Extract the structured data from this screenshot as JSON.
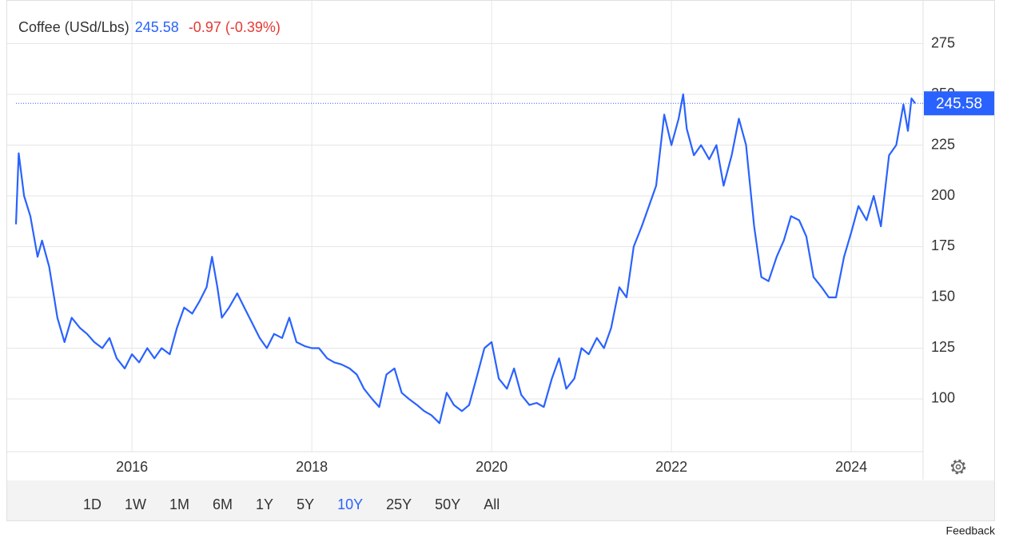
{
  "chart_data": {
    "type": "line",
    "title": "Coffee (USd/Lbs)",
    "last_value": 245.58,
    "change_label": "-0.97 (-0.39%)",
    "x": [
      2014.71,
      2014.74,
      2014.8,
      2014.87,
      2014.95,
      2015.0,
      2015.08,
      2015.17,
      2015.25,
      2015.33,
      2015.42,
      2015.5,
      2015.58,
      2015.67,
      2015.75,
      2015.83,
      2015.92,
      2016.0,
      2016.08,
      2016.17,
      2016.25,
      2016.33,
      2016.42,
      2016.5,
      2016.58,
      2016.67,
      2016.75,
      2016.83,
      2016.89,
      2016.95,
      2017.0,
      2017.08,
      2017.17,
      2017.25,
      2017.33,
      2017.42,
      2017.5,
      2017.58,
      2017.67,
      2017.75,
      2017.83,
      2017.92,
      2018.0,
      2018.08,
      2018.17,
      2018.25,
      2018.33,
      2018.42,
      2018.5,
      2018.58,
      2018.67,
      2018.75,
      2018.83,
      2018.92,
      2019.0,
      2019.08,
      2019.17,
      2019.25,
      2019.33,
      2019.42,
      2019.5,
      2019.58,
      2019.67,
      2019.75,
      2019.83,
      2019.92,
      2020.0,
      2020.08,
      2020.17,
      2020.25,
      2020.33,
      2020.42,
      2020.5,
      2020.58,
      2020.67,
      2020.75,
      2020.83,
      2020.92,
      2021.0,
      2021.08,
      2021.17,
      2021.25,
      2021.33,
      2021.42,
      2021.5,
      2021.58,
      2021.67,
      2021.75,
      2021.83,
      2021.92,
      2022.0,
      2022.08,
      2022.13,
      2022.17,
      2022.25,
      2022.33,
      2022.42,
      2022.5,
      2022.58,
      2022.67,
      2022.75,
      2022.83,
      2022.92,
      2023.0,
      2023.08,
      2023.17,
      2023.25,
      2023.33,
      2023.42,
      2023.5,
      2023.58,
      2023.67,
      2023.75,
      2023.83,
      2023.92,
      2024.0,
      2024.08,
      2024.17,
      2024.25,
      2024.33,
      2024.42,
      2024.5,
      2024.58,
      2024.63,
      2024.67,
      2024.71
    ],
    "series": [
      {
        "name": "Coffee",
        "color": "#2962ff",
        "values": [
          186,
          221,
          200,
          190,
          170,
          178,
          165,
          140,
          128,
          140,
          135,
          132,
          128,
          125,
          130,
          120,
          115,
          122,
          118,
          125,
          120,
          125,
          122,
          135,
          145,
          142,
          148,
          155,
          170,
          155,
          140,
          145,
          152,
          145,
          138,
          130,
          125,
          132,
          130,
          140,
          128,
          126,
          125,
          125,
          120,
          118,
          117,
          115,
          112,
          105,
          100,
          96,
          112,
          115,
          103,
          100,
          97,
          94,
          92,
          88,
          103,
          97,
          94,
          97,
          110,
          125,
          128,
          110,
          105,
          115,
          102,
          97,
          98,
          96,
          110,
          120,
          105,
          110,
          125,
          122,
          130,
          125,
          135,
          155,
          150,
          175,
          185,
          195,
          205,
          240,
          225,
          238,
          250,
          233,
          220,
          225,
          218,
          225,
          205,
          220,
          238,
          225,
          185,
          160,
          158,
          170,
          178,
          190,
          188,
          180,
          160,
          155,
          150,
          150,
          170,
          182,
          195,
          188,
          200,
          185,
          220,
          225,
          245,
          232,
          248,
          245.58
        ]
      }
    ],
    "xlim": [
      2014.71,
      2024.71
    ],
    "xticks": [
      2016,
      2018,
      2020,
      2022,
      2024
    ],
    "ylim": [
      74,
      294.5
    ],
    "yticks": [
      100,
      125,
      150,
      175,
      200,
      225,
      250,
      275
    ],
    "grid": true,
    "ranges": [
      "1D",
      "1W",
      "1M",
      "6M",
      "1Y",
      "5Y",
      "10Y",
      "25Y",
      "50Y",
      "All"
    ],
    "active_range": "10Y",
    "feedback": "Feedback"
  }
}
